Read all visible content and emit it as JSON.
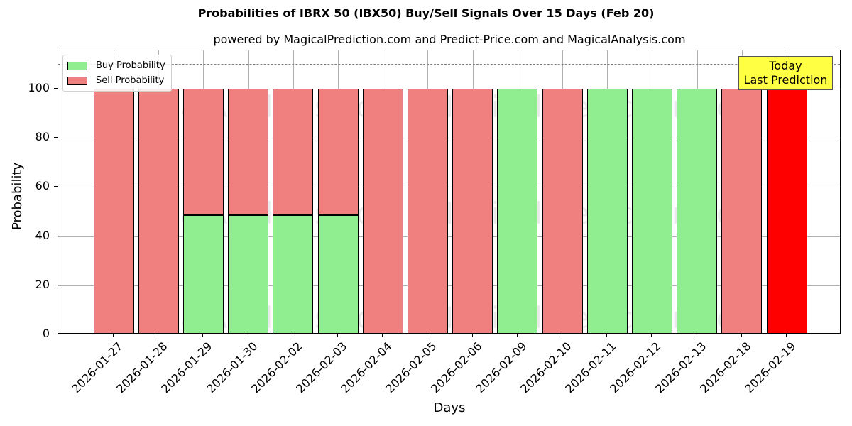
{
  "chart_data": {
    "type": "bar",
    "stacked": true,
    "title": "Probabilities of IBRX 50 (IBX50) Buy/Sell Signals Over 15 Days (Feb 20)",
    "subtitle": "powered by MagicalPrediction.com and Predict-Price.com and MagicalAnalysis.com",
    "xlabel": "Days",
    "ylabel": "Probability",
    "ylim": [
      0,
      115
    ],
    "yticks": [
      0,
      20,
      40,
      60,
      80,
      100
    ],
    "grid": true,
    "legend_position": "upper left",
    "categories": [
      "2026-01-27",
      "2026-01-28",
      "2026-01-29",
      "2026-01-30",
      "2026-02-02",
      "2026-02-03",
      "2026-02-04",
      "2026-02-05",
      "2026-02-06",
      "2026-02-09",
      "2026-02-10",
      "2026-02-11",
      "2026-02-12",
      "2026-02-13",
      "2026-02-18",
      "2026-02-19"
    ],
    "series": [
      {
        "name": "Buy Probability",
        "color": "#90ee90",
        "values": [
          0,
          0,
          48.5,
          48.5,
          48.5,
          48.5,
          0,
          0,
          0,
          100,
          0,
          100,
          100,
          100,
          0,
          0
        ]
      },
      {
        "name": "Sell Probability",
        "color": "#f08080",
        "values": [
          100,
          100,
          51.5,
          51.5,
          51.5,
          51.5,
          100,
          100,
          100,
          0,
          100,
          0,
          0,
          0,
          100,
          100
        ]
      }
    ],
    "highlight": {
      "category": "2026-02-19",
      "color": "#ff0000",
      "annotation": [
        "Today",
        "Last Prediction"
      ]
    },
    "reference_line": {
      "y": 110,
      "style": "dashed",
      "color": "#808080"
    },
    "watermarks": [
      "MagicalAnalysis.com",
      "MagicalPrediction.com"
    ]
  },
  "legend": {
    "buy_label": "Buy Probability",
    "sell_label": "Sell Probability"
  },
  "annotation": {
    "line1": "Today",
    "line2": "Last Prediction"
  }
}
